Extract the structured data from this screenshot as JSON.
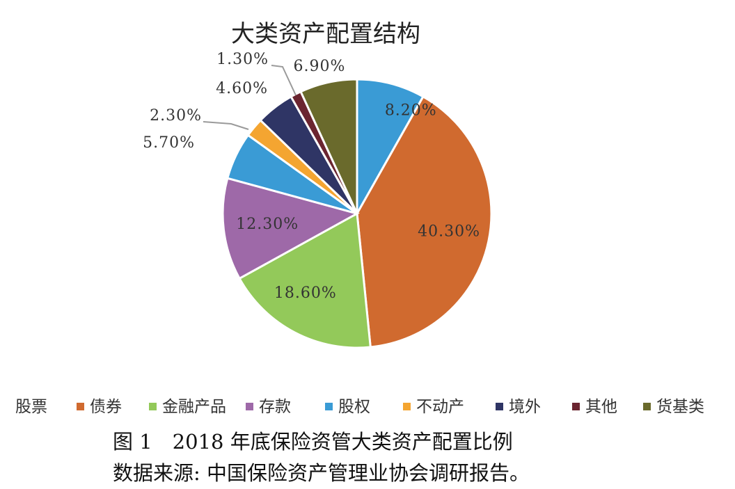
{
  "chart_data": {
    "type": "pie",
    "title": "大类资产配置结构",
    "categories": [
      "股票",
      "债券",
      "金融产品",
      "存款",
      "股权",
      "不动产",
      "境外",
      "其他",
      "货基类"
    ],
    "values": [
      8.2,
      40.3,
      18.6,
      12.3,
      5.7,
      2.3,
      4.6,
      1.3,
      6.9
    ],
    "labels": [
      "8.20%",
      "40.30%",
      "18.60%",
      "12.30%",
      "5.70%",
      "2.30%",
      "4.60%",
      "1.30%",
      "6.90%"
    ],
    "colors": [
      "#3a9bd5",
      "#d06a2f",
      "#93c95a",
      "#9e69a8",
      "#3a9bd5",
      "#f4a531",
      "#2f3565",
      "#6b2530",
      "#6a6a2c"
    ],
    "start_angle_deg": 0,
    "direction": "clockwise",
    "legend_position": "bottom"
  },
  "caption": {
    "figure": "图 1　2018 年底保险资管大类资产配置比例",
    "source": "数据来源: 中国保险资产管理业协会调研报告。"
  }
}
